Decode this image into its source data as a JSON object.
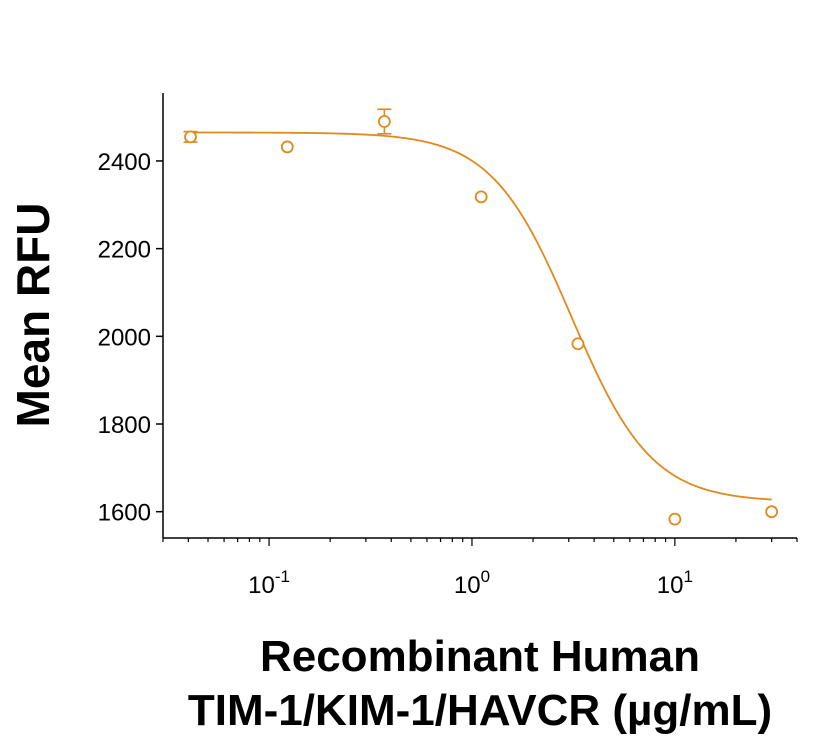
{
  "chart_data": {
    "type": "scatter",
    "xlabel_line1": "Recombinant Human",
    "xlabel_line2": "TIM-1/KIM-1/HAVCR (µg/mL)",
    "ylabel": "Mean RFU",
    "xscale": "log",
    "xlim": [
      0.03,
      40
    ],
    "ylim": [
      1540,
      2555
    ],
    "yticks": [
      1600,
      1800,
      2000,
      2200,
      2400
    ],
    "xticks": [
      {
        "value": 0.1,
        "base": "10",
        "exp": "-1"
      },
      {
        "value": 1,
        "base": "10",
        "exp": "0"
      },
      {
        "value": 10,
        "base": "10",
        "exp": "1"
      }
    ],
    "series": [
      {
        "color": "#e08a1e",
        "points": [
          {
            "x": 0.041,
            "y": 2455,
            "err": 12
          },
          {
            "x": 0.123,
            "y": 2432,
            "err": 0
          },
          {
            "x": 0.37,
            "y": 2490,
            "err": 28
          },
          {
            "x": 1.11,
            "y": 2318,
            "err": 0
          },
          {
            "x": 3.33,
            "y": 1983,
            "err": 0
          },
          {
            "x": 10.0,
            "y": 1583,
            "err": 0
          },
          {
            "x": 30.0,
            "y": 1600,
            "err": 0
          }
        ],
        "fit": {
          "top": 2465,
          "bottom": 1622,
          "ec50": 3.1,
          "hill": 2.2,
          "xmin": 0.041,
          "xmax": 30
        }
      }
    ],
    "grid": false
  }
}
